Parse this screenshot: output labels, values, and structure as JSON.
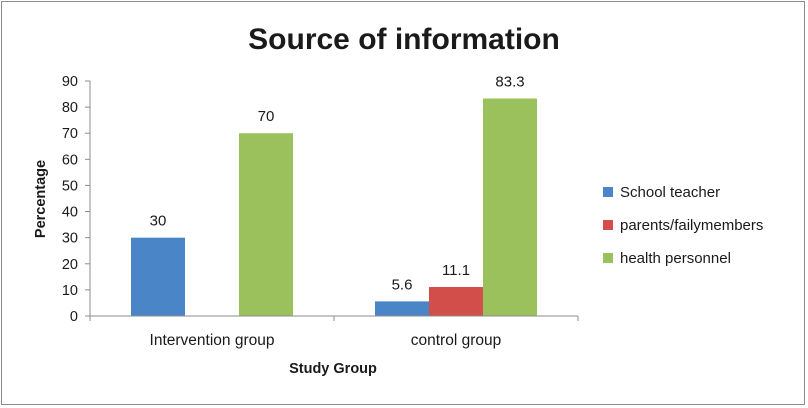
{
  "chart_data": {
    "type": "bar",
    "title": "Source of information",
    "xlabel": "Study Group",
    "ylabel": "Percentage",
    "ylim": [
      0,
      90
    ],
    "yticks": [
      0,
      10,
      20,
      30,
      40,
      50,
      60,
      70,
      80,
      90
    ],
    "categories": [
      "Intervention group",
      "control group"
    ],
    "series": [
      {
        "name": "School teacher",
        "color": "#4a86c7",
        "values": [
          30,
          5.6
        ]
      },
      {
        "name": "parents/failymembers",
        "color": "#d24e4a",
        "values": [
          null,
          11.1
        ]
      },
      {
        "name": "health personnel",
        "color": "#9bc15c",
        "values": [
          70,
          83.3
        ]
      }
    ],
    "legend_position": "right",
    "grid": false
  }
}
